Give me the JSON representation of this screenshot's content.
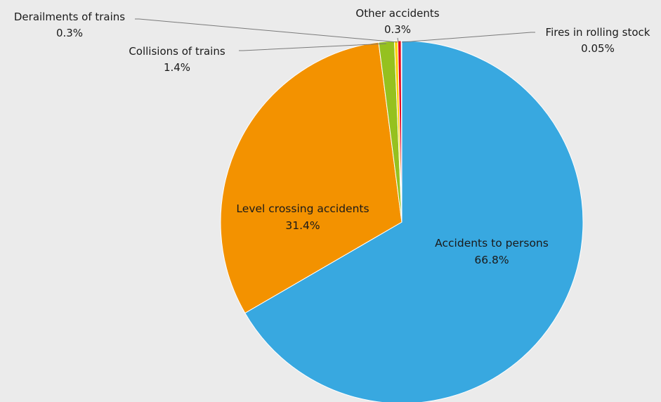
{
  "chart_data": {
    "type": "pie",
    "title": "",
    "slices": [
      {
        "key": "persons",
        "label": "Accidents to persons",
        "value_label": "66.8%",
        "value": 66.8,
        "color": "#38a8e0"
      },
      {
        "key": "level",
        "label": "Level crossing accidents",
        "value_label": "31.4%",
        "value": 31.4,
        "color": "#f39200"
      },
      {
        "key": "collisions",
        "label": "Collisions of trains",
        "value_label": "1.4%",
        "value": 1.4,
        "color": "#95c11f"
      },
      {
        "key": "derail",
        "label": "Derailments of trains",
        "value_label": "0.3%",
        "value": 0.3,
        "color": "#ffd200"
      },
      {
        "key": "other",
        "label": "Other accidents",
        "value_label": "0.3%",
        "value": 0.3,
        "color": "#e2001a"
      },
      {
        "key": "fires",
        "label": "Fires in rolling stock",
        "value_label": "0.05%",
        "value": 0.05,
        "color": "#5a5a5a"
      }
    ],
    "start_angle": "12 o'clock",
    "direction": "clockwise",
    "legend": "none",
    "data_labels": "category name and percentage"
  }
}
